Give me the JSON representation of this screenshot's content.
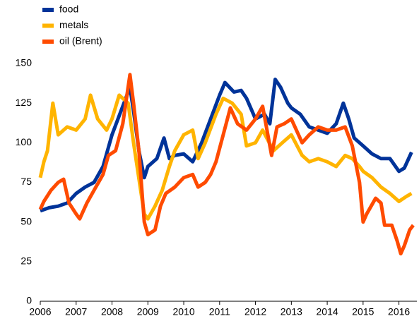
{
  "chart_data": {
    "type": "line",
    "xlim": [
      2006,
      2016.5
    ],
    "xticks": [
      2006,
      2007,
      2008,
      2009,
      2010,
      2011,
      2012,
      2013,
      2014,
      2015,
      2016
    ],
    "ylim": [
      0,
      150
    ],
    "yticks": [
      0,
      25,
      50,
      75,
      100,
      125,
      150
    ],
    "grid": false,
    "legend": "top-left",
    "series": [
      {
        "name": "food",
        "color": "#003399",
        "x": [
          2006.0,
          2006.25,
          2006.5,
          2006.75,
          2007.0,
          2007.25,
          2007.5,
          2007.75,
          2008.0,
          2008.25,
          2008.5,
          2008.6,
          2008.75,
          2008.9,
          2009.0,
          2009.25,
          2009.45,
          2009.6,
          2009.75,
          2010.0,
          2010.25,
          2010.5,
          2010.75,
          2011.0,
          2011.15,
          2011.4,
          2011.6,
          2011.75,
          2012.0,
          2012.25,
          2012.4,
          2012.55,
          2012.7,
          2012.9,
          2013.0,
          2013.25,
          2013.5,
          2013.75,
          2014.0,
          2014.25,
          2014.45,
          2014.6,
          2014.75,
          2015.0,
          2015.25,
          2015.5,
          2015.75,
          2016.0,
          2016.15,
          2016.35
        ],
        "values": [
          57,
          59,
          60,
          62,
          68,
          72,
          75,
          85,
          105,
          120,
          135,
          120,
          95,
          78,
          85,
          90,
          103,
          90,
          92,
          93,
          88,
          100,
          115,
          130,
          138,
          132,
          133,
          128,
          115,
          118,
          112,
          140,
          135,
          125,
          122,
          118,
          110,
          108,
          106,
          112,
          125,
          115,
          103,
          98,
          93,
          90,
          90,
          82,
          84,
          94
        ]
      },
      {
        "name": "metals",
        "color": "#ffb400",
        "x": [
          2006.0,
          2006.1,
          2006.2,
          2006.35,
          2006.5,
          2006.75,
          2007.0,
          2007.25,
          2007.4,
          2007.6,
          2007.85,
          2008.0,
          2008.2,
          2008.45,
          2008.6,
          2008.8,
          2008.9,
          2009.0,
          2009.2,
          2009.4,
          2009.6,
          2009.75,
          2010.0,
          2010.25,
          2010.4,
          2010.6,
          2010.9,
          2011.1,
          2011.35,
          2011.6,
          2011.75,
          2012.0,
          2012.2,
          2012.5,
          2012.75,
          2013.0,
          2013.3,
          2013.5,
          2013.75,
          2014.0,
          2014.25,
          2014.5,
          2014.7,
          2014.9,
          2015.0,
          2015.25,
          2015.5,
          2015.75,
          2016.0,
          2016.2,
          2016.35
        ],
        "values": [
          78,
          88,
          95,
          125,
          105,
          110,
          108,
          115,
          130,
          115,
          108,
          115,
          130,
          125,
          100,
          70,
          55,
          52,
          60,
          70,
          85,
          95,
          105,
          108,
          90,
          100,
          118,
          128,
          125,
          118,
          98,
          100,
          108,
          95,
          100,
          105,
          92,
          88,
          90,
          88,
          85,
          92,
          90,
          85,
          82,
          78,
          72,
          68,
          63,
          66,
          68
        ]
      },
      {
        "name": "oil (Brent)",
        "color": "#ff4b00",
        "x": [
          2006.0,
          2006.1,
          2006.3,
          2006.5,
          2006.65,
          2006.8,
          2007.0,
          2007.1,
          2007.3,
          2007.5,
          2007.75,
          2007.9,
          2008.1,
          2008.3,
          2008.5,
          2008.6,
          2008.75,
          2008.9,
          2009.0,
          2009.2,
          2009.35,
          2009.5,
          2009.75,
          2010.0,
          2010.25,
          2010.4,
          2010.6,
          2010.75,
          2010.9,
          2011.1,
          2011.3,
          2011.5,
          2011.75,
          2012.0,
          2012.2,
          2012.45,
          2012.6,
          2012.8,
          2013.0,
          2013.3,
          2013.5,
          2013.75,
          2014.0,
          2014.25,
          2014.5,
          2014.7,
          2014.9,
          2015.0,
          2015.1,
          2015.35,
          2015.5,
          2015.6,
          2015.8,
          2015.95,
          2016.05,
          2016.15,
          2016.3,
          2016.4
        ],
        "values": [
          58,
          63,
          70,
          75,
          77,
          62,
          55,
          52,
          62,
          70,
          80,
          92,
          95,
          112,
          143,
          125,
          95,
          50,
          42,
          45,
          60,
          68,
          72,
          78,
          80,
          72,
          75,
          80,
          88,
          105,
          122,
          112,
          108,
          115,
          123,
          92,
          110,
          112,
          115,
          100,
          105,
          110,
          108,
          108,
          110,
          98,
          75,
          50,
          55,
          65,
          62,
          48,
          48,
          38,
          30,
          35,
          45,
          48
        ]
      }
    ]
  }
}
